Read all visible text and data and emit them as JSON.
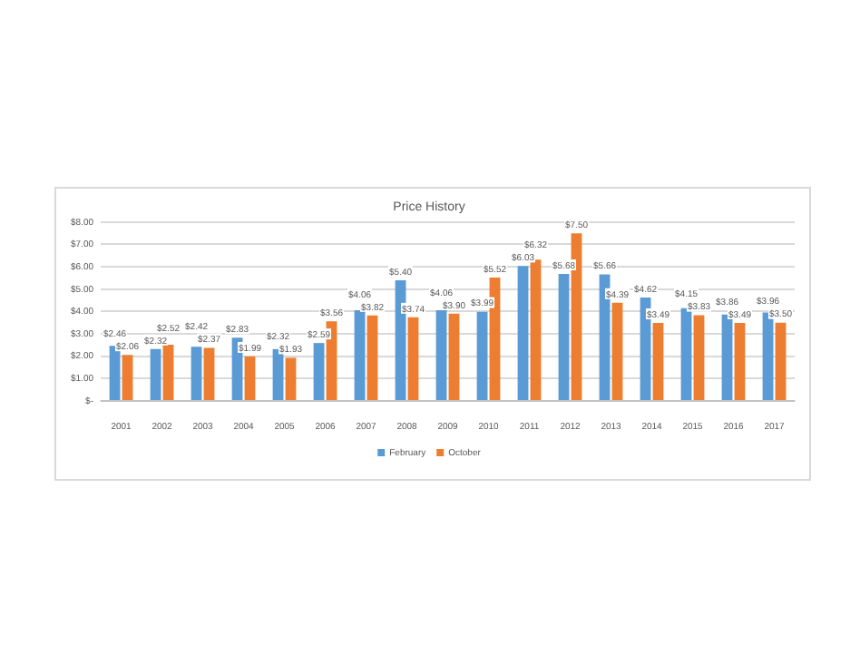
{
  "chart_data": {
    "type": "bar",
    "title": "Price History",
    "categories": [
      "2001",
      "2002",
      "2003",
      "2004",
      "2005",
      "2006",
      "2007",
      "2008",
      "2009",
      "2010",
      "2011",
      "2012",
      "2013",
      "2014",
      "2015",
      "2016",
      "2017"
    ],
    "series": [
      {
        "name": "February",
        "color": "#5b9bd5",
        "values": [
          2.46,
          2.32,
          2.42,
          2.83,
          2.32,
          2.59,
          4.06,
          5.4,
          4.06,
          3.99,
          6.03,
          5.68,
          5.66,
          4.62,
          4.15,
          3.86,
          3.96
        ],
        "value_labels": [
          "$2.46",
          "$2.32",
          "$2.42",
          "$2.83",
          "$2.32",
          "$2.59",
          "$4.06",
          "$5.40",
          "$4.06",
          "$3.99",
          "$6.03",
          "$5.68",
          "$5.66",
          "$4.62",
          "$4.15",
          "$3.86",
          "$3.96"
        ]
      },
      {
        "name": "October",
        "color": "#ed7d31",
        "values": [
          2.06,
          2.52,
          2.37,
          1.99,
          1.93,
          3.56,
          3.82,
          3.74,
          3.9,
          5.52,
          6.32,
          7.5,
          4.39,
          3.49,
          3.83,
          3.49,
          3.5
        ],
        "value_labels": [
          "$2.06",
          "$2.52",
          "$2.37",
          "$1.99",
          "$1.93",
          "$3.56",
          "$3.82",
          "$3.74",
          "$3.90",
          "$5.52",
          "$6.32",
          "$7.50",
          "$4.39",
          "$3.49",
          "$3.83",
          "$3.49",
          "$3.50"
        ]
      }
    ],
    "ylim": [
      0,
      8
    ],
    "yticks": [
      {
        "value": 0,
        "label": "$-"
      },
      {
        "value": 1,
        "label": "$1.00"
      },
      {
        "value": 2,
        "label": "$2.00"
      },
      {
        "value": 3,
        "label": "$3.00"
      },
      {
        "value": 4,
        "label": "$4.00"
      },
      {
        "value": 5,
        "label": "$5.00"
      },
      {
        "value": 6,
        "label": "$6.00"
      },
      {
        "value": 7,
        "label": "$7.00"
      },
      {
        "value": 8,
        "label": "$8.00"
      }
    ],
    "grid": "y",
    "legend": "bottom"
  }
}
